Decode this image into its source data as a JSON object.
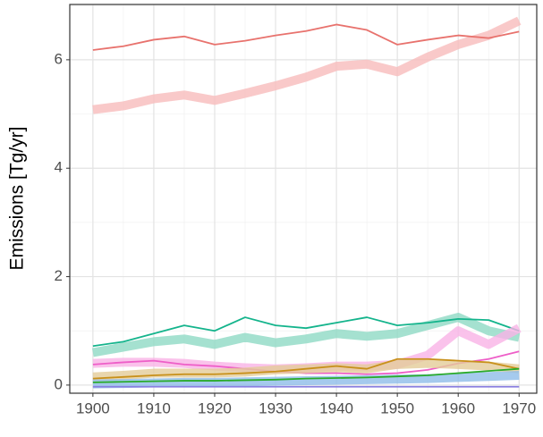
{
  "chart_data": {
    "type": "line",
    "y_label": "Emissions [Tg/yr]",
    "x": [
      1900,
      1905,
      1910,
      1915,
      1920,
      1925,
      1930,
      1935,
      1940,
      1945,
      1950,
      1955,
      1960,
      1965,
      1970
    ],
    "series": [
      {
        "color": "#f8bcbb",
        "style": "thick",
        "values": [
          5.08,
          5.15,
          5.28,
          5.35,
          5.25,
          5.38,
          5.52,
          5.68,
          5.88,
          5.92,
          5.78,
          6.05,
          6.28,
          6.45,
          6.72
        ]
      },
      {
        "color": "#e8726d",
        "style": "thin",
        "values": [
          6.18,
          6.25,
          6.37,
          6.43,
          6.28,
          6.35,
          6.45,
          6.53,
          6.65,
          6.55,
          6.28,
          6.37,
          6.45,
          6.4,
          6.52
        ]
      },
      {
        "color": "#8fd9c4",
        "style": "thick",
        "values": [
          0.6,
          0.7,
          0.8,
          0.85,
          0.75,
          0.88,
          0.78,
          0.85,
          0.95,
          0.9,
          0.95,
          1.1,
          1.25,
          1.0,
          0.88
        ]
      },
      {
        "color": "#14b48c",
        "style": "thin",
        "values": [
          0.72,
          0.8,
          0.95,
          1.1,
          1.0,
          1.25,
          1.1,
          1.05,
          1.15,
          1.25,
          1.1,
          1.15,
          1.22,
          1.2,
          1.0
        ]
      },
      {
        "color": "#f9b3e6",
        "style": "thick",
        "values": [
          0.4,
          0.42,
          0.42,
          0.4,
          0.35,
          0.32,
          0.3,
          0.32,
          0.35,
          0.35,
          0.38,
          0.55,
          1.0,
          0.75,
          1.05
        ]
      },
      {
        "color": "#ee5ec8",
        "style": "thin",
        "values": [
          0.38,
          0.42,
          0.45,
          0.38,
          0.35,
          0.3,
          0.25,
          0.22,
          0.22,
          0.2,
          0.22,
          0.28,
          0.4,
          0.48,
          0.62
        ]
      },
      {
        "color": "#e3cc98",
        "style": "thick",
        "values": [
          0.15,
          0.18,
          0.22,
          0.22,
          0.22,
          0.24,
          0.28,
          0.3,
          0.32,
          0.3,
          0.38,
          0.4,
          0.38,
          0.35,
          0.3
        ]
      },
      {
        "color": "#c8901a",
        "style": "thin",
        "values": [
          0.12,
          0.15,
          0.18,
          0.2,
          0.2,
          0.22,
          0.25,
          0.3,
          0.35,
          0.3,
          0.48,
          0.48,
          0.45,
          0.42,
          0.3
        ]
      },
      {
        "color": "#8fbde8",
        "style": "thick",
        "values": [
          0.02,
          0.03,
          0.04,
          0.05,
          0.05,
          0.06,
          0.07,
          0.08,
          0.09,
          0.1,
          0.11,
          0.12,
          0.14,
          0.16,
          0.18
        ]
      },
      {
        "color": "#2aab2a",
        "style": "thin",
        "values": [
          0.05,
          0.06,
          0.07,
          0.08,
          0.08,
          0.09,
          0.1,
          0.12,
          0.13,
          0.14,
          0.16,
          0.18,
          0.22,
          0.26,
          0.3
        ]
      },
      {
        "color": "#8a7fe0",
        "style": "thin",
        "values": [
          -0.03,
          -0.03,
          -0.03,
          -0.03,
          -0.03,
          -0.03,
          -0.03,
          -0.03,
          -0.03,
          -0.03,
          -0.03,
          -0.03,
          -0.03,
          -0.03,
          -0.03
        ]
      }
    ],
    "xlim": [
      1896.2,
      1972.9
    ],
    "xticks": [
      1900,
      1910,
      1920,
      1930,
      1940,
      1950,
      1960,
      1970
    ],
    "ylim": [
      -0.15,
      7.02
    ],
    "yticks": [
      0,
      2,
      4,
      6
    ],
    "grid": true,
    "minor_grid": true
  }
}
